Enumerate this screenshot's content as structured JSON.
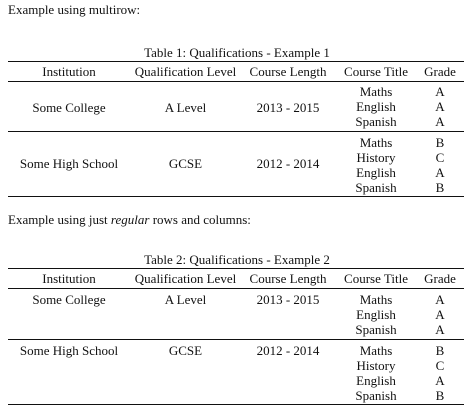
{
  "intro1": "Example using multirow:",
  "intro2": {
    "before": "Example using just ",
    "emph": "regular",
    "after": " rows and columns:"
  },
  "headers": [
    "Institution",
    "Qualification Level",
    "Course Length",
    "Course Title",
    "Grade"
  ],
  "table1": {
    "caption": "Table 1: Qualifications - Example 1",
    "groups": [
      {
        "institution": "Some College",
        "level": "A Level",
        "length": "2013 - 2015",
        "courses": [
          "Maths",
          "English",
          "Spanish"
        ],
        "grades": [
          "A",
          "A",
          "A"
        ]
      },
      {
        "institution": "Some High School",
        "level": "GCSE",
        "length": "2012 - 2014",
        "courses": [
          "Maths",
          "History",
          "English",
          "Spanish"
        ],
        "grades": [
          "B",
          "C",
          "A",
          "B"
        ]
      }
    ]
  },
  "table2": {
    "caption": "Table 2: Qualifications - Example 2",
    "groups": [
      {
        "institution": "Some College",
        "level": "A Level",
        "length": "2013 - 2015",
        "courses": [
          "Maths",
          "English",
          "Spanish"
        ],
        "grades": [
          "A",
          "A",
          "A"
        ]
      },
      {
        "institution": "Some High School",
        "level": "GCSE",
        "length": "2012 - 2014",
        "courses": [
          "Maths",
          "History",
          "English",
          "Spanish"
        ],
        "grades": [
          "B",
          "C",
          "A",
          "B"
        ]
      }
    ]
  }
}
